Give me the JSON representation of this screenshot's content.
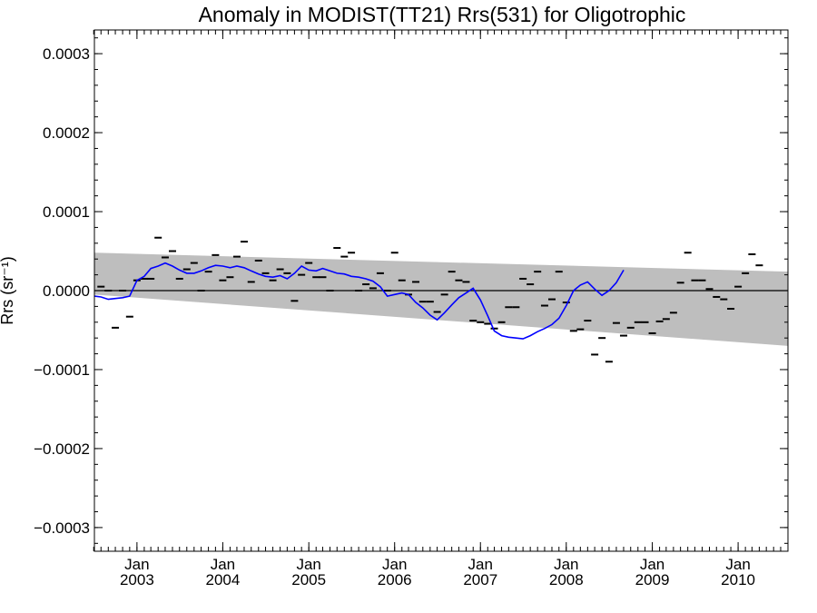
{
  "chart_data": {
    "type": "scatter",
    "title": "Anomaly in MODIST(TT21) Rrs(531) for Oligotrophic",
    "xlabel": "",
    "ylabel": "Rrs (sr⁻¹)",
    "xlim": [
      "2002-07-04",
      "2010-08-01"
    ],
    "ylim": [
      -0.00033,
      0.00033
    ],
    "yticks": [
      {
        "value": 0.0003,
        "label": "0.0003"
      },
      {
        "value": 0.0002,
        "label": "0.0002"
      },
      {
        "value": 0.0001,
        "label": "0.0001"
      },
      {
        "value": 0.0,
        "label": "0.0000"
      },
      {
        "value": -0.0001,
        "label": "−0.0001"
      },
      {
        "value": -0.0002,
        "label": "−0.0002"
      },
      {
        "value": -0.0003,
        "label": "−0.0003"
      }
    ],
    "xticks": [
      {
        "date": "2003-01-01",
        "month": "Jan",
        "year": "2003"
      },
      {
        "date": "2004-01-01",
        "month": "Jan",
        "year": "2004"
      },
      {
        "date": "2005-01-01",
        "month": "Jan",
        "year": "2005"
      },
      {
        "date": "2006-01-01",
        "month": "Jan",
        "year": "2006"
      },
      {
        "date": "2007-01-01",
        "month": "Jan",
        "year": "2007"
      },
      {
        "date": "2008-01-01",
        "month": "Jan",
        "year": "2008"
      },
      {
        "date": "2009-01-01",
        "month": "Jan",
        "year": "2009"
      },
      {
        "date": "2010-01-01",
        "month": "Jan",
        "year": "2010"
      }
    ],
    "reference_line": 0.0,
    "confidence_band": {
      "color": "#bebebe",
      "start": {
        "date": "2002-07-04",
        "upper": 4.8e-05,
        "lower": -5e-06
      },
      "end": {
        "date": "2010-08-01",
        "upper": 2.4e-05,
        "lower": -7e-05
      }
    },
    "series": [
      {
        "kind": "monthly-anomaly",
        "marker": "dash",
        "color": "#000000",
        "points": [
          {
            "date": "2002-08-01",
            "value": 5e-06
          },
          {
            "date": "2002-09-01",
            "value": 0.0
          },
          {
            "date": "2002-10-01",
            "value": -4.7e-05
          },
          {
            "date": "2002-11-01",
            "value": 0.0
          },
          {
            "date": "2002-12-01",
            "value": -3.3e-05
          },
          {
            "date": "2003-01-01",
            "value": 1.3e-05
          },
          {
            "date": "2003-02-01",
            "value": 1.5e-05
          },
          {
            "date": "2003-03-01",
            "value": 1.5e-05
          },
          {
            "date": "2003-04-01",
            "value": 6.7e-05
          },
          {
            "date": "2003-05-01",
            "value": 4.2e-05
          },
          {
            "date": "2003-06-01",
            "value": 5e-05
          },
          {
            "date": "2003-07-01",
            "value": 1.5e-05
          },
          {
            "date": "2003-08-01",
            "value": 2.7e-05
          },
          {
            "date": "2003-09-01",
            "value": 3.5e-05
          },
          {
            "date": "2003-10-01",
            "value": 0.0
          },
          {
            "date": "2003-11-01",
            "value": 2.4e-05
          },
          {
            "date": "2003-12-01",
            "value": 4.5e-05
          },
          {
            "date": "2004-01-01",
            "value": 1.3e-05
          },
          {
            "date": "2004-02-01",
            "value": 1.7e-05
          },
          {
            "date": "2004-03-01",
            "value": 4.3e-05
          },
          {
            "date": "2004-04-01",
            "value": 6.2e-05
          },
          {
            "date": "2004-05-01",
            "value": 1.1e-05
          },
          {
            "date": "2004-06-01",
            "value": 3.8e-05
          },
          {
            "date": "2004-07-01",
            "value": 2.2e-05
          },
          {
            "date": "2004-08-01",
            "value": 1.3e-05
          },
          {
            "date": "2004-09-01",
            "value": 2.7e-05
          },
          {
            "date": "2004-10-01",
            "value": 2.2e-05
          },
          {
            "date": "2004-11-01",
            "value": -1.3e-05
          },
          {
            "date": "2004-12-01",
            "value": 2e-05
          },
          {
            "date": "2005-01-01",
            "value": 3.5e-05
          },
          {
            "date": "2005-02-01",
            "value": 1.7e-05
          },
          {
            "date": "2005-03-01",
            "value": 1.7e-05
          },
          {
            "date": "2005-04-01",
            "value": 0.0
          },
          {
            "date": "2005-05-01",
            "value": 5.4e-05
          },
          {
            "date": "2005-06-01",
            "value": 4.3e-05
          },
          {
            "date": "2005-07-01",
            "value": 4.8e-05
          },
          {
            "date": "2005-08-01",
            "value": 0.0
          },
          {
            "date": "2005-09-01",
            "value": 8e-06
          },
          {
            "date": "2005-10-01",
            "value": 3e-06
          },
          {
            "date": "2005-11-01",
            "value": 2.2e-05
          },
          {
            "date": "2005-12-01",
            "value": 0.0
          },
          {
            "date": "2006-01-01",
            "value": 4.8e-05
          },
          {
            "date": "2006-02-01",
            "value": 1.3e-05
          },
          {
            "date": "2006-03-01",
            "value": -5e-06
          },
          {
            "date": "2006-04-01",
            "value": 1.1e-05
          },
          {
            "date": "2006-05-01",
            "value": -1.4e-05
          },
          {
            "date": "2006-06-01",
            "value": -1.4e-05
          },
          {
            "date": "2006-07-01",
            "value": -2.7e-05
          },
          {
            "date": "2006-08-01",
            "value": -5e-06
          },
          {
            "date": "2006-09-01",
            "value": 2.4e-05
          },
          {
            "date": "2006-10-01",
            "value": 1.3e-05
          },
          {
            "date": "2006-11-01",
            "value": 1.1e-05
          },
          {
            "date": "2006-12-01",
            "value": -3.8e-05
          },
          {
            "date": "2007-01-01",
            "value": -4e-05
          },
          {
            "date": "2007-02-01",
            "value": -4.2e-05
          },
          {
            "date": "2007-03-01",
            "value": -4.8e-05
          },
          {
            "date": "2007-04-01",
            "value": -4e-05
          },
          {
            "date": "2007-05-01",
            "value": -2.1e-05
          },
          {
            "date": "2007-06-01",
            "value": -2.1e-05
          },
          {
            "date": "2007-07-01",
            "value": 1.5e-05
          },
          {
            "date": "2007-08-01",
            "value": 8e-06
          },
          {
            "date": "2007-09-01",
            "value": 2.4e-05
          },
          {
            "date": "2007-10-01",
            "value": -1.9e-05
          },
          {
            "date": "2007-11-01",
            "value": -1.1e-05
          },
          {
            "date": "2007-12-01",
            "value": 2.4e-05
          },
          {
            "date": "2008-01-01",
            "value": -1.5e-05
          },
          {
            "date": "2008-02-01",
            "value": -5.1e-05
          },
          {
            "date": "2008-03-01",
            "value": -4.9e-05
          },
          {
            "date": "2008-04-01",
            "value": -3.8e-05
          },
          {
            "date": "2008-05-01",
            "value": -8.1e-05
          },
          {
            "date": "2008-06-01",
            "value": -6e-05
          },
          {
            "date": "2008-07-01",
            "value": -9e-05
          },
          {
            "date": "2008-08-01",
            "value": -4.1e-05
          },
          {
            "date": "2008-09-01",
            "value": -5.7e-05
          },
          {
            "date": "2008-10-01",
            "value": -4.7e-05
          },
          {
            "date": "2008-11-01",
            "value": -4e-05
          },
          {
            "date": "2008-12-01",
            "value": -4e-05
          },
          {
            "date": "2009-01-01",
            "value": -5.4e-05
          },
          {
            "date": "2009-02-01",
            "value": -3.9e-05
          },
          {
            "date": "2009-03-01",
            "value": -3.6e-05
          },
          {
            "date": "2009-04-01",
            "value": -2.8e-05
          },
          {
            "date": "2009-05-01",
            "value": 1e-05
          },
          {
            "date": "2009-06-01",
            "value": 4.8e-05
          },
          {
            "date": "2009-07-01",
            "value": 1.3e-05
          },
          {
            "date": "2009-08-01",
            "value": 1.3e-05
          },
          {
            "date": "2009-09-01",
            "value": 2e-06
          },
          {
            "date": "2009-10-01",
            "value": -8e-06
          },
          {
            "date": "2009-11-01",
            "value": -1.1e-05
          },
          {
            "date": "2009-12-01",
            "value": -2.3e-05
          },
          {
            "date": "2010-01-01",
            "value": 5e-06
          },
          {
            "date": "2010-02-01",
            "value": 2.2e-05
          },
          {
            "date": "2010-03-01",
            "value": 4.6e-05
          },
          {
            "date": "2010-04-01",
            "value": 3.2e-05
          }
        ]
      },
      {
        "kind": "running-mean",
        "marker": "line",
        "color": "#0000ff",
        "points": [
          {
            "date": "2002-07-04",
            "value": -7e-06
          },
          {
            "date": "2002-08-01",
            "value": -8e-06
          },
          {
            "date": "2002-09-01",
            "value": -1.1e-05
          },
          {
            "date": "2002-10-01",
            "value": -1e-05
          },
          {
            "date": "2002-11-01",
            "value": -9e-06
          },
          {
            "date": "2002-12-01",
            "value": -7e-06
          },
          {
            "date": "2003-01-01",
            "value": 1.3e-05
          },
          {
            "date": "2003-02-01",
            "value": 1.8e-05
          },
          {
            "date": "2003-03-01",
            "value": 2.8e-05
          },
          {
            "date": "2003-04-01",
            "value": 3.1e-05
          },
          {
            "date": "2003-05-01",
            "value": 3.5e-05
          },
          {
            "date": "2003-06-01",
            "value": 3.1e-05
          },
          {
            "date": "2003-07-01",
            "value": 2.6e-05
          },
          {
            "date": "2003-08-01",
            "value": 2.2e-05
          },
          {
            "date": "2003-09-01",
            "value": 2.2e-05
          },
          {
            "date": "2003-10-01",
            "value": 2.5e-05
          },
          {
            "date": "2003-11-01",
            "value": 2.9e-05
          },
          {
            "date": "2003-12-01",
            "value": 3.2e-05
          },
          {
            "date": "2004-01-01",
            "value": 3.1e-05
          },
          {
            "date": "2004-02-01",
            "value": 2.9e-05
          },
          {
            "date": "2004-03-01",
            "value": 3.1e-05
          },
          {
            "date": "2004-04-01",
            "value": 2.9e-05
          },
          {
            "date": "2004-05-01",
            "value": 2.5e-05
          },
          {
            "date": "2004-06-01",
            "value": 2.1e-05
          },
          {
            "date": "2004-07-01",
            "value": 1.8e-05
          },
          {
            "date": "2004-08-01",
            "value": 1.7e-05
          },
          {
            "date": "2004-09-01",
            "value": 1.9e-05
          },
          {
            "date": "2004-10-01",
            "value": 1.5e-05
          },
          {
            "date": "2004-11-01",
            "value": 2.2e-05
          },
          {
            "date": "2004-12-01",
            "value": 3.1e-05
          },
          {
            "date": "2005-01-01",
            "value": 2.6e-05
          },
          {
            "date": "2005-02-01",
            "value": 2.5e-05
          },
          {
            "date": "2005-03-01",
            "value": 2.8e-05
          },
          {
            "date": "2005-04-01",
            "value": 2.5e-05
          },
          {
            "date": "2005-05-01",
            "value": 2.2e-05
          },
          {
            "date": "2005-06-01",
            "value": 2.1e-05
          },
          {
            "date": "2005-07-01",
            "value": 1.8e-05
          },
          {
            "date": "2005-08-01",
            "value": 1.7e-05
          },
          {
            "date": "2005-09-01",
            "value": 1.5e-05
          },
          {
            "date": "2005-10-01",
            "value": 1.2e-05
          },
          {
            "date": "2005-11-01",
            "value": 5e-06
          },
          {
            "date": "2005-12-01",
            "value": -7e-06
          },
          {
            "date": "2006-01-01",
            "value": -5e-06
          },
          {
            "date": "2006-02-01",
            "value": -3e-06
          },
          {
            "date": "2006-03-01",
            "value": -5e-06
          },
          {
            "date": "2006-04-01",
            "value": -1.5e-05
          },
          {
            "date": "2006-05-01",
            "value": -2.2e-05
          },
          {
            "date": "2006-06-01",
            "value": -3.1e-05
          },
          {
            "date": "2006-07-01",
            "value": -3.7e-05
          },
          {
            "date": "2006-08-01",
            "value": -2.8e-05
          },
          {
            "date": "2006-09-01",
            "value": -1.8e-05
          },
          {
            "date": "2006-10-01",
            "value": -9e-06
          },
          {
            "date": "2006-11-01",
            "value": -3e-06
          },
          {
            "date": "2006-12-01",
            "value": 3e-06
          },
          {
            "date": "2007-01-01",
            "value": -1.2e-05
          },
          {
            "date": "2007-02-01",
            "value": -3.2e-05
          },
          {
            "date": "2007-03-01",
            "value": -5.1e-05
          },
          {
            "date": "2007-04-01",
            "value": -5.7e-05
          },
          {
            "date": "2007-05-01",
            "value": -5.9e-05
          },
          {
            "date": "2007-06-01",
            "value": -6e-05
          },
          {
            "date": "2007-07-01",
            "value": -6.1e-05
          },
          {
            "date": "2007-08-01",
            "value": -5.7e-05
          },
          {
            "date": "2007-09-01",
            "value": -5.2e-05
          },
          {
            "date": "2007-10-01",
            "value": -4.8e-05
          },
          {
            "date": "2007-11-01",
            "value": -4.3e-05
          },
          {
            "date": "2007-12-01",
            "value": -3.5e-05
          },
          {
            "date": "2008-01-01",
            "value": -1.9e-05
          },
          {
            "date": "2008-02-01",
            "value": 0.0
          },
          {
            "date": "2008-03-01",
            "value": 7e-06
          },
          {
            "date": "2008-04-01",
            "value": 1.1e-05
          },
          {
            "date": "2008-05-01",
            "value": 2e-06
          },
          {
            "date": "2008-06-01",
            "value": -6e-06
          },
          {
            "date": "2008-07-01",
            "value": 0.0
          },
          {
            "date": "2008-08-01",
            "value": 1e-05
          },
          {
            "date": "2008-09-01",
            "value": 2.6e-05
          }
        ]
      }
    ],
    "grid": false,
    "legend": "none"
  }
}
